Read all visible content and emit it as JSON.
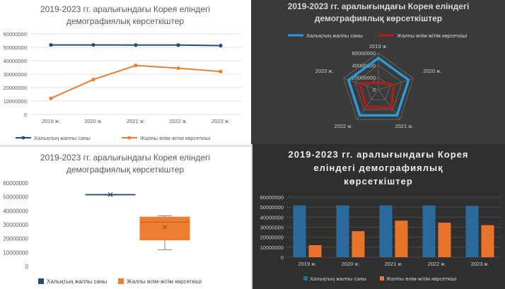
{
  "colors": {
    "population": "#1f4e79",
    "mortality": "#ed7d31",
    "popBright": "#2e9bd6",
    "mortDark": "#a8201a",
    "popBar": "#2a6b9c",
    "mortBar": "#e8742b"
  },
  "chart_data": [
    {
      "type": "line",
      "title_line1": "2019-2023 гг. аралығындағы Корея еліндегі",
      "title_line2": "демографиялық көрсеткіштер",
      "categories": [
        "2019 ж.",
        "2020 ж.",
        "2021 ж.",
        "2022 ж.",
        "2023 ж."
      ],
      "series": [
        {
          "name": "Халықтың жалпы саны",
          "values": [
            51800000,
            51800000,
            51700000,
            51700000,
            51300000
          ]
        },
        {
          "name": "Жалпы өлім-жітім көрсеткіші",
          "values": [
            12000000,
            26000000,
            36500000,
            34500000,
            32000000
          ]
        }
      ],
      "ylim": [
        0,
        60000000
      ],
      "yticks": [
        "0",
        "10000000",
        "20000000",
        "30000000",
        "40000000",
        "50000000",
        "60000000"
      ],
      "legend": "bottom"
    },
    {
      "type": "radar",
      "title_line1": "2019-2023 гг. аралығындағы Корея еліндегі",
      "title_line2": "демографиялық көрсеткіштер",
      "categories": [
        "2019 ж.",
        "2020 ж.",
        "2021 ж.",
        "2022 ж.",
        "2023 ж."
      ],
      "series": [
        {
          "name": "Халықтың жалпы саны",
          "values": [
            51800000,
            51800000,
            51700000,
            51700000,
            51300000
          ]
        },
        {
          "name": "Жалпы өлім-жітім көрсеткіші",
          "values": [
            12000000,
            26000000,
            36500000,
            34500000,
            32000000
          ]
        }
      ],
      "rlim": [
        0,
        60000000
      ],
      "rticks": [
        "0",
        "20000000",
        "40000000",
        "60000000"
      ],
      "legend": "top"
    },
    {
      "type": "box",
      "title_line1": "2019-2023 гг. аралығындағы Корея еліндегі",
      "title_line2": "демографиялық көрсеткіштер",
      "series": [
        {
          "name": "Халықтың жалпы саны",
          "min": 51300000,
          "q1": 51500000,
          "median": 51700000,
          "q3": 51800000,
          "max": 51800000,
          "mean": 51660000
        },
        {
          "name": "Жалпы өлім-жітім көрсеткіші",
          "min": 12000000,
          "q1": 19000000,
          "median": 32000000,
          "q3": 35500000,
          "max": 36500000,
          "mean": 28200000
        }
      ],
      "ylim": [
        0,
        60000000
      ],
      "yticks": [
        "0",
        "10000000",
        "20000000",
        "30000000",
        "40000000",
        "50000000",
        "60000000"
      ],
      "legend": "bottom"
    },
    {
      "type": "bar",
      "title_line1": "2019-2023 гг. аралығындағы Корея",
      "title_line2": "еліндегі демографиялық",
      "title_line3": "көрсеткіштер",
      "categories": [
        "2019 ж.",
        "2020 ж.",
        "2021 ж.",
        "2022 ж.",
        "2023 ж."
      ],
      "series": [
        {
          "name": "Халықтың жалпы саны",
          "values": [
            51800000,
            51800000,
            51700000,
            51700000,
            51300000
          ]
        },
        {
          "name": "Жалпы өлім-жітім көрсеткіші",
          "values": [
            12000000,
            26000000,
            36500000,
            34500000,
            32000000
          ]
        }
      ],
      "ylim": [
        0,
        60000000
      ],
      "yticks": [
        "0",
        "10000000",
        "20000000",
        "30000000",
        "40000000",
        "50000000",
        "60000000"
      ],
      "legend": "bottom"
    }
  ]
}
